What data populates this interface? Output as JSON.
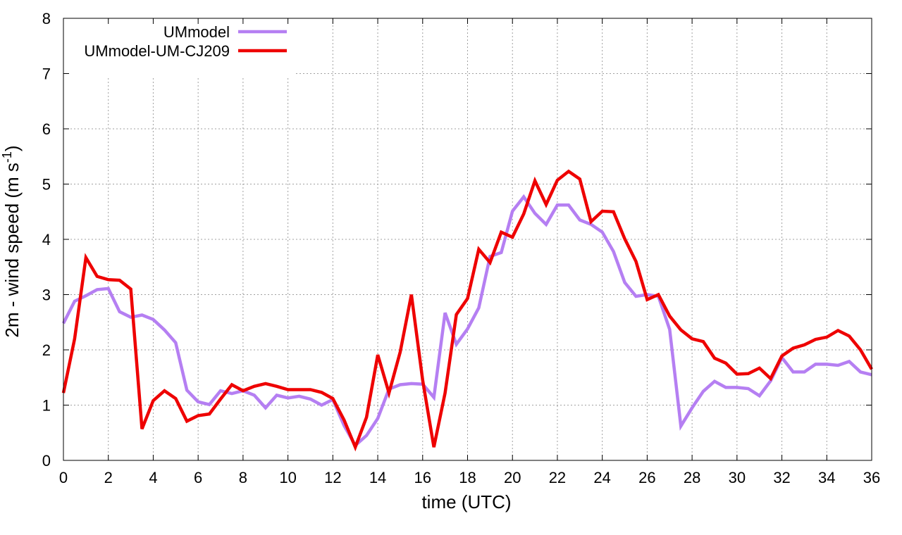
{
  "chart_data": {
    "type": "line",
    "xlabel": "time (UTC)",
    "ylabel_main": "2m - wind speed  (m s",
    "ylabel_sup": "-1",
    "ylabel_close": ")",
    "xlim": [
      0,
      36
    ],
    "ylim": [
      0,
      8
    ],
    "x_ticks": [
      0,
      2,
      4,
      6,
      8,
      10,
      12,
      14,
      16,
      18,
      20,
      22,
      24,
      26,
      28,
      30,
      32,
      34,
      36
    ],
    "y_ticks": [
      0,
      1,
      2,
      3,
      4,
      5,
      6,
      7,
      8
    ],
    "grid": true,
    "legend_position": "top-left",
    "x": [
      0,
      0.5,
      1,
      1.5,
      2,
      2.5,
      3,
      3.5,
      4,
      4.5,
      5,
      5.5,
      6,
      6.5,
      7,
      7.5,
      8,
      8.5,
      9,
      9.5,
      10,
      10.5,
      11,
      11.5,
      12,
      12.5,
      13,
      13.5,
      14,
      14.5,
      15,
      15.5,
      16,
      16.5,
      17,
      17.5,
      18,
      18.5,
      19,
      19.5,
      20,
      20.5,
      21,
      21.5,
      22,
      22.5,
      23,
      23.5,
      24,
      24.5,
      25,
      25.5,
      26,
      26.5,
      27,
      27.5,
      28,
      28.5,
      29,
      29.5,
      30,
      30.5,
      31,
      31.5,
      32,
      32.5,
      33,
      33.5,
      34,
      34.5,
      35,
      35.5,
      36
    ],
    "series": [
      {
        "name": "UMmodel",
        "color": "#b57ff2",
        "values": [
          2.48,
          2.88,
          2.98,
          3.09,
          3.11,
          2.69,
          2.59,
          2.63,
          2.55,
          2.36,
          2.13,
          1.27,
          1.06,
          1.01,
          1.26,
          1.21,
          1.26,
          1.18,
          0.95,
          1.18,
          1.13,
          1.16,
          1.11,
          1.0,
          1.1,
          0.63,
          0.27,
          0.45,
          0.76,
          1.29,
          1.37,
          1.39,
          1.38,
          1.14,
          2.67,
          2.1,
          2.38,
          2.76,
          3.69,
          3.76,
          4.51,
          4.77,
          4.47,
          4.27,
          4.62,
          4.62,
          4.35,
          4.27,
          4.13,
          3.78,
          3.22,
          2.97,
          3.0,
          2.97,
          2.37,
          0.62,
          0.95,
          1.25,
          1.43,
          1.32,
          1.32,
          1.3,
          1.17,
          1.44,
          1.86,
          1.6,
          1.6,
          1.74,
          1.74,
          1.72,
          1.79,
          1.6,
          1.55
        ]
      },
      {
        "name": "UMmodel-UM-CJ209",
        "color": "#ee0000",
        "values": [
          1.22,
          2.2,
          3.67,
          3.33,
          3.27,
          3.26,
          3.1,
          0.57,
          1.08,
          1.26,
          1.12,
          0.71,
          0.81,
          0.84,
          1.11,
          1.37,
          1.26,
          1.34,
          1.39,
          1.34,
          1.28,
          1.28,
          1.28,
          1.23,
          1.12,
          0.73,
          0.24,
          0.78,
          1.91,
          1.22,
          1.96,
          3.0,
          1.45,
          0.24,
          1.22,
          2.64,
          2.93,
          3.82,
          3.58,
          4.13,
          4.04,
          4.46,
          5.06,
          4.63,
          5.07,
          5.23,
          5.09,
          4.32,
          4.51,
          4.5,
          4.01,
          3.6,
          2.91,
          3.0,
          2.61,
          2.36,
          2.2,
          2.15,
          1.85,
          1.76,
          1.56,
          1.57,
          1.67,
          1.48,
          1.89,
          2.03,
          2.09,
          2.19,
          2.23,
          2.35,
          2.25,
          2.0,
          1.65
        ]
      }
    ]
  }
}
